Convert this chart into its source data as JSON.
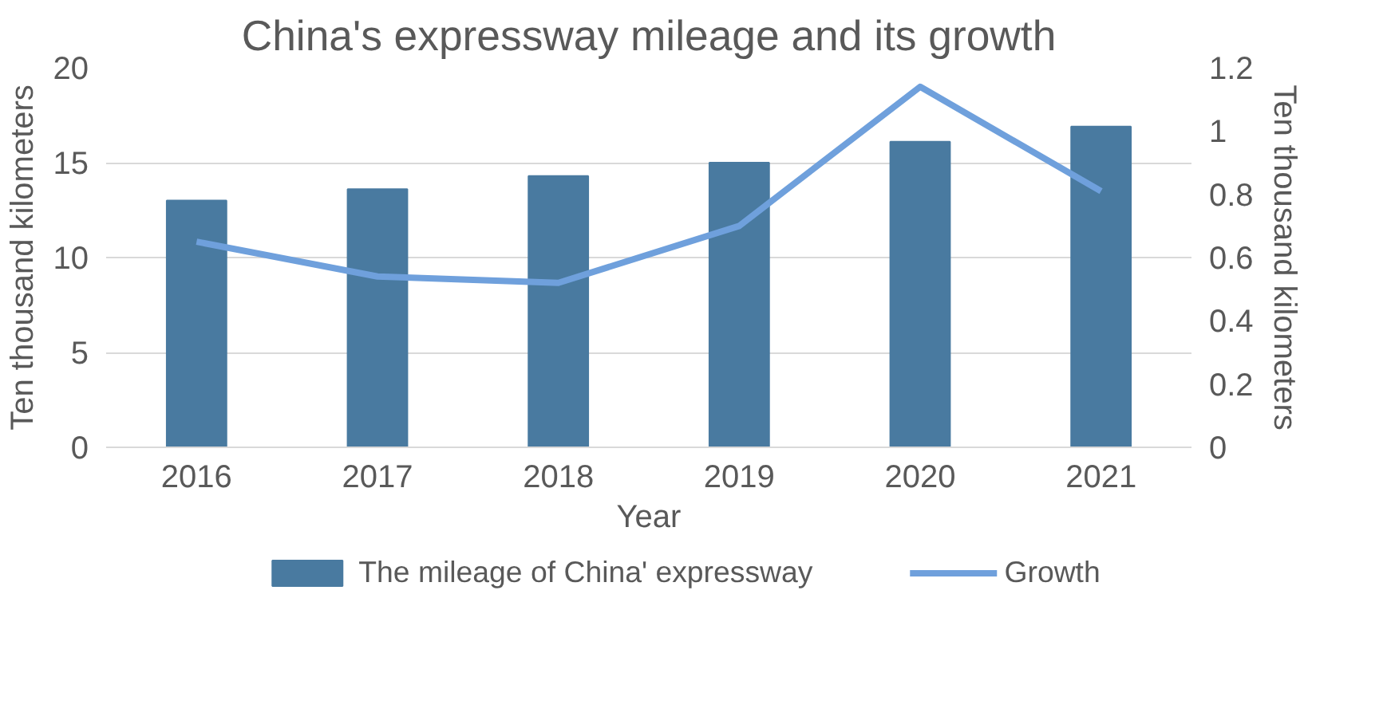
{
  "chart_data": {
    "type": "bar",
    "title": "China's expressway mileage and its growth",
    "xlabel": "Year",
    "ylabel": "Ten thousand kilometers",
    "y2label": "Ten thousand kilometers",
    "categories": [
      "2016",
      "2017",
      "2018",
      "2019",
      "2020",
      "2021"
    ],
    "series": [
      {
        "name": "The mileage of China' expressway",
        "color": "#497aa0",
        "values": [
          13.0,
          13.6,
          14.3,
          15.0,
          16.1,
          16.9
        ]
      },
      {
        "name": "Growth",
        "type": "line",
        "axis": "y2",
        "color": "#6fa0dc",
        "values": [
          0.65,
          0.54,
          0.52,
          0.7,
          1.14,
          0.81
        ]
      }
    ],
    "ylim": [
      0,
      20
    ],
    "yticks": [
      0,
      5,
      10,
      15,
      20
    ],
    "y2lim": [
      0,
      1.2
    ],
    "y2ticks": [
      0,
      0.2,
      0.4,
      0.6,
      0.8,
      1,
      1.2
    ],
    "grid": "y",
    "legend": "bottom"
  }
}
